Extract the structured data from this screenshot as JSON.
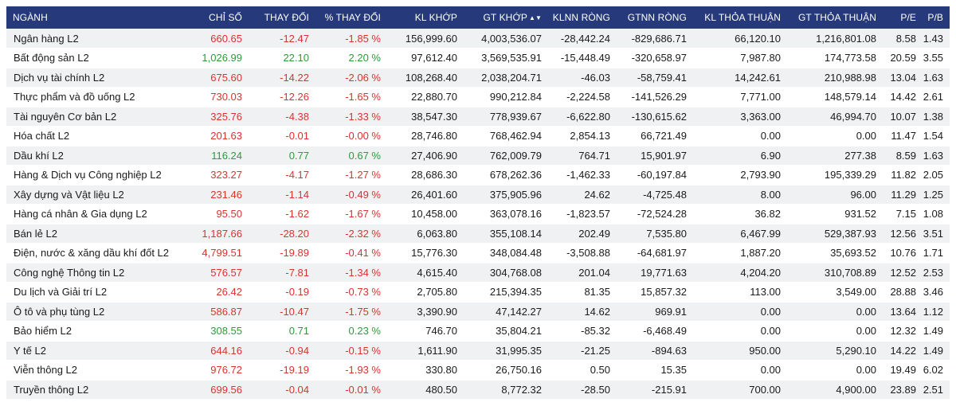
{
  "colors": {
    "header_bg": "#26397a",
    "row_alt_bg": "#f0f1f3",
    "up": "#2e9a3c",
    "down": "#d6342f"
  },
  "header": {
    "sector": "NGÀNH",
    "index": "CHỈ SỐ",
    "change": "THAY ĐỔI",
    "pct_change": "% THAY ĐỔI",
    "match_volume": "KL KHỚP",
    "match_value": "GT KHỚP",
    "sort_icon": "▲▼",
    "foreign_net_volume": "KLNN RÒNG",
    "foreign_net_value": "GTNN RÒNG",
    "deal_volume": "KL THỎA THUẬN",
    "deal_value": "GT THỎA THUẬN",
    "pe": "P/E",
    "pb": "P/B"
  },
  "rows": [
    {
      "sector": "Ngân hàng L2",
      "index": "660.65",
      "change": "-12.47",
      "pct": "-1.85 %",
      "dir": "down",
      "kl_khop": "156,999.60",
      "gt_khop": "4,003,536.07",
      "klnn": "-28,442.24",
      "gtnn": "-829,686.71",
      "kl_tt": "66,120.10",
      "gt_tt": "1,216,801.08",
      "pe": "8.58",
      "pb": "1.43"
    },
    {
      "sector": "Bất động sản L2",
      "index": "1,026.99",
      "change": "22.10",
      "pct": "2.20 %",
      "dir": "up",
      "kl_khop": "97,612.40",
      "gt_khop": "3,569,535.91",
      "klnn": "-15,448.49",
      "gtnn": "-320,658.97",
      "kl_tt": "7,987.80",
      "gt_tt": "174,773.58",
      "pe": "20.59",
      "pb": "3.55"
    },
    {
      "sector": "Dịch vụ tài chính L2",
      "index": "675.60",
      "change": "-14.22",
      "pct": "-2.06 %",
      "dir": "down",
      "kl_khop": "108,268.40",
      "gt_khop": "2,038,204.71",
      "klnn": "-46.03",
      "gtnn": "-58,759.41",
      "kl_tt": "14,242.61",
      "gt_tt": "210,988.98",
      "pe": "13.04",
      "pb": "1.63"
    },
    {
      "sector": "Thực phẩm và đồ uống L2",
      "index": "730.03",
      "change": "-12.26",
      "pct": "-1.65 %",
      "dir": "down",
      "kl_khop": "22,880.70",
      "gt_khop": "990,212.84",
      "klnn": "-2,224.58",
      "gtnn": "-141,526.29",
      "kl_tt": "7,771.00",
      "gt_tt": "148,579.14",
      "pe": "14.42",
      "pb": "2.61"
    },
    {
      "sector": "Tài nguyên Cơ bản L2",
      "index": "325.76",
      "change": "-4.38",
      "pct": "-1.33 %",
      "dir": "down",
      "kl_khop": "38,547.30",
      "gt_khop": "778,939.67",
      "klnn": "-6,622.80",
      "gtnn": "-130,615.62",
      "kl_tt": "3,363.00",
      "gt_tt": "46,994.70",
      "pe": "10.07",
      "pb": "1.38"
    },
    {
      "sector": "Hóa chất L2",
      "index": "201.63",
      "change": "-0.01",
      "pct": "-0.00 %",
      "dir": "down",
      "kl_khop": "28,746.80",
      "gt_khop": "768,462.94",
      "klnn": "2,854.13",
      "gtnn": "66,721.49",
      "kl_tt": "0.00",
      "gt_tt": "0.00",
      "pe": "11.47",
      "pb": "1.54"
    },
    {
      "sector": "Dầu khí L2",
      "index": "116.24",
      "change": "0.77",
      "pct": "0.67 %",
      "dir": "up",
      "kl_khop": "27,406.90",
      "gt_khop": "762,009.79",
      "klnn": "764.71",
      "gtnn": "15,901.97",
      "kl_tt": "6.90",
      "gt_tt": "277.38",
      "pe": "8.59",
      "pb": "1.63"
    },
    {
      "sector": "Hàng & Dịch vụ Công nghiệp L2",
      "index": "323.27",
      "change": "-4.17",
      "pct": "-1.27 %",
      "dir": "down",
      "kl_khop": "28,686.30",
      "gt_khop": "678,262.36",
      "klnn": "-1,462.33",
      "gtnn": "-60,197.84",
      "kl_tt": "2,793.90",
      "gt_tt": "195,339.29",
      "pe": "11.82",
      "pb": "2.05"
    },
    {
      "sector": "Xây dựng và Vật liệu L2",
      "index": "231.46",
      "change": "-1.14",
      "pct": "-0.49 %",
      "dir": "down",
      "kl_khop": "26,401.60",
      "gt_khop": "375,905.96",
      "klnn": "24.62",
      "gtnn": "-4,725.48",
      "kl_tt": "8.00",
      "gt_tt": "96.00",
      "pe": "11.29",
      "pb": "1.25"
    },
    {
      "sector": "Hàng cá nhân & Gia dụng L2",
      "index": "95.50",
      "change": "-1.62",
      "pct": "-1.67 %",
      "dir": "down",
      "kl_khop": "10,458.00",
      "gt_khop": "363,078.16",
      "klnn": "-1,823.57",
      "gtnn": "-72,524.28",
      "kl_tt": "36.82",
      "gt_tt": "931.52",
      "pe": "7.15",
      "pb": "1.08"
    },
    {
      "sector": "Bán lẻ L2",
      "index": "1,187.66",
      "change": "-28.20",
      "pct": "-2.32 %",
      "dir": "down",
      "kl_khop": "6,063.80",
      "gt_khop": "355,108.14",
      "klnn": "202.49",
      "gtnn": "7,535.80",
      "kl_tt": "6,467.99",
      "gt_tt": "529,387.93",
      "pe": "12.56",
      "pb": "3.51"
    },
    {
      "sector": "Điện, nước & xăng dầu khí đốt L2",
      "index": "4,799.51",
      "change": "-19.89",
      "pct": "-0.41 %",
      "dir": "down",
      "kl_khop": "15,776.30",
      "gt_khop": "348,084.48",
      "klnn": "-3,508.88",
      "gtnn": "-64,681.97",
      "kl_tt": "1,887.20",
      "gt_tt": "35,693.52",
      "pe": "10.76",
      "pb": "1.71"
    },
    {
      "sector": "Công nghệ Thông tin L2",
      "index": "576.57",
      "change": "-7.81",
      "pct": "-1.34 %",
      "dir": "down",
      "kl_khop": "4,615.40",
      "gt_khop": "304,768.08",
      "klnn": "201.04",
      "gtnn": "19,771.63",
      "kl_tt": "4,204.20",
      "gt_tt": "310,708.89",
      "pe": "12.52",
      "pb": "2.53"
    },
    {
      "sector": "Du lịch và Giải trí L2",
      "index": "26.42",
      "change": "-0.19",
      "pct": "-0.73 %",
      "dir": "down",
      "kl_khop": "2,705.80",
      "gt_khop": "215,394.35",
      "klnn": "81.35",
      "gtnn": "15,857.32",
      "kl_tt": "113.00",
      "gt_tt": "3,549.00",
      "pe": "28.88",
      "pb": "3.46"
    },
    {
      "sector": "Ô tô và phụ tùng L2",
      "index": "586.87",
      "change": "-10.47",
      "pct": "-1.75 %",
      "dir": "down",
      "kl_khop": "3,390.90",
      "gt_khop": "47,142.27",
      "klnn": "14.62",
      "gtnn": "969.91",
      "kl_tt": "0.00",
      "gt_tt": "0.00",
      "pe": "13.64",
      "pb": "1.12"
    },
    {
      "sector": "Bảo hiểm L2",
      "index": "308.55",
      "change": "0.71",
      "pct": "0.23 %",
      "dir": "up",
      "kl_khop": "746.70",
      "gt_khop": "35,804.21",
      "klnn": "-85.32",
      "gtnn": "-6,468.49",
      "kl_tt": "0.00",
      "gt_tt": "0.00",
      "pe": "12.32",
      "pb": "1.49"
    },
    {
      "sector": "Y tế L2",
      "index": "644.16",
      "change": "-0.94",
      "pct": "-0.15 %",
      "dir": "down",
      "kl_khop": "1,611.90",
      "gt_khop": "31,995.35",
      "klnn": "-21.25",
      "gtnn": "-894.63",
      "kl_tt": "950.00",
      "gt_tt": "5,290.10",
      "pe": "14.22",
      "pb": "1.49"
    },
    {
      "sector": "Viễn thông L2",
      "index": "976.72",
      "change": "-19.19",
      "pct": "-1.93 %",
      "dir": "down",
      "kl_khop": "330.80",
      "gt_khop": "26,750.16",
      "klnn": "0.50",
      "gtnn": "15.35",
      "kl_tt": "0.00",
      "gt_tt": "0.00",
      "pe": "19.49",
      "pb": "6.02"
    },
    {
      "sector": "Truyền thông L2",
      "index": "699.56",
      "change": "-0.04",
      "pct": "-0.01 %",
      "dir": "down",
      "kl_khop": "480.50",
      "gt_khop": "8,772.32",
      "klnn": "-28.50",
      "gtnn": "-215.91",
      "kl_tt": "700.00",
      "gt_tt": "4,900.00",
      "pe": "23.89",
      "pb": "2.51"
    }
  ]
}
